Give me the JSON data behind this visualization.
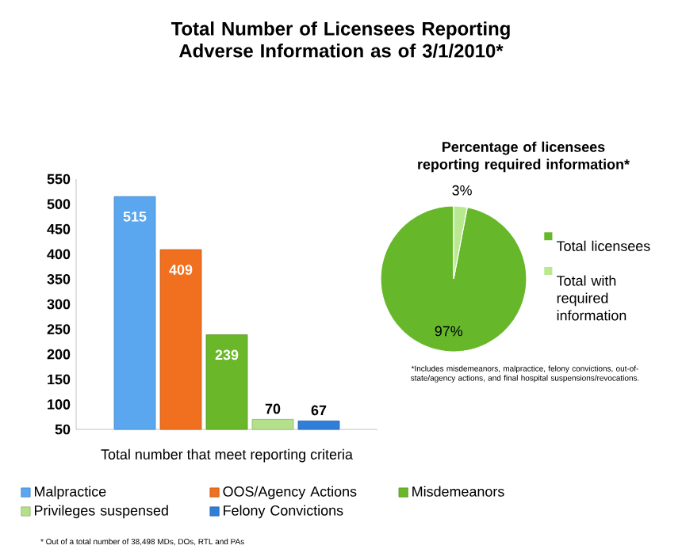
{
  "chart_data": [
    {
      "type": "bar",
      "title": "Total Number of Licensees Reporting Adverse Information as of 3/1/2010*",
      "xlabel": "Total number that meet reporting criteria",
      "categories": [
        null
      ],
      "series": [
        {
          "name": "Malpractice",
          "color": "#5aa7f0",
          "values": [
            515
          ]
        },
        {
          "name": "OOS/Agency Actions",
          "color": "#f07020",
          "values": [
            409
          ]
        },
        {
          "name": "Misdemeanors",
          "color": "#6ab82a",
          "values": [
            239
          ]
        },
        {
          "name": "Privileges suspensed",
          "color": "#b5e08a",
          "values": [
            70
          ]
        },
        {
          "name": "Felony Convictions",
          "color": "#2f7fd8",
          "values": [
            67
          ]
        }
      ],
      "ylim": [
        50,
        550
      ],
      "yticks": [
        50,
        100,
        150,
        200,
        250,
        300,
        350,
        400,
        450,
        500,
        550
      ],
      "data_labels": true,
      "legend": "bottom",
      "annotations": [
        "* Out of a total number of 38,498 MDs, DOs, RTL and PAs"
      ]
    },
    {
      "type": "pie",
      "title": "Percentage of licensees reporting required information*",
      "categories": [
        "Total licensees",
        "Total with required information"
      ],
      "values": [
        97,
        3
      ],
      "colors": [
        "#66b82a",
        "#b8e890"
      ],
      "value_labels": [
        "97%",
        "3%"
      ],
      "legend": "right",
      "annotations": [
        "*Includes misdemeanors, malpractice, felony convictions, out-of-state/agency actions, and final hospital suspensions/revocations."
      ]
    }
  ]
}
